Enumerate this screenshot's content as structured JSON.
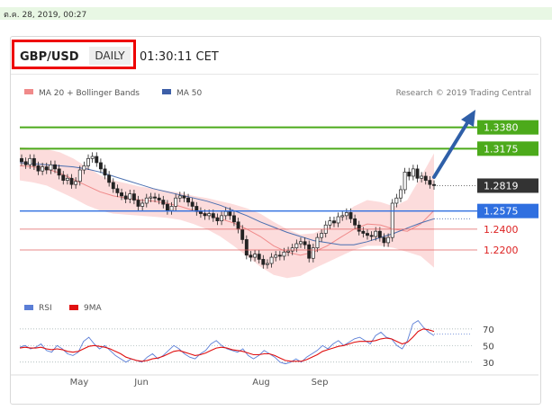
{
  "timestamp": "ต.ค. 28, 2019, 00:27",
  "header": {
    "pair": "GBP/USD",
    "timeframe_button": "DAILY",
    "time": "01:30:11 CET"
  },
  "colors": {
    "up_green": "#4caa1b",
    "support_blue": "#2f6fe0",
    "support_red": "#e06060",
    "ma50": "#4a6fb0",
    "bollinger_fill": "#fbd6d6",
    "arrow": "#2f5fa8",
    "current_price_bg": "#333333"
  },
  "chart_data": [
    {
      "type": "line",
      "legend": [
        {
          "name": "MA 20 + Bollinger Bands",
          "color": "#f08a8a"
        },
        {
          "name": "MA 50",
          "color": "#3d5fa8"
        }
      ],
      "attribution": "Research © 2019 Trading Central",
      "ylim": [
        1.175,
        1.355
      ],
      "x_ticks": [
        "May",
        "Jun",
        "Aug",
        "Sep"
      ],
      "levels": [
        {
          "value": 1.338,
          "label": "1.3380",
          "style": "green"
        },
        {
          "value": 1.3175,
          "label": "1.3175",
          "style": "green"
        },
        {
          "value": 1.2819,
          "label": "1.2819",
          "style": "current"
        },
        {
          "value": 1.2575,
          "label": "1.2575",
          "style": "blue"
        },
        {
          "value": 1.24,
          "label": "1.2400",
          "style": "red"
        },
        {
          "value": 1.22,
          "label": "1.2200",
          "style": "red"
        }
      ],
      "series": [
        {
          "name": "Close",
          "values": [
            1.305,
            1.302,
            1.308,
            1.301,
            1.296,
            1.3,
            1.297,
            1.302,
            1.298,
            1.292,
            1.287,
            1.289,
            1.283,
            1.286,
            1.297,
            1.301,
            1.308,
            1.31,
            1.304,
            1.298,
            1.292,
            1.285,
            1.279,
            1.275,
            1.272,
            1.269,
            1.274,
            1.268,
            1.262,
            1.265,
            1.27,
            1.271,
            1.27,
            1.268,
            1.264,
            1.258,
            1.262,
            1.27,
            1.272,
            1.27,
            1.266,
            1.262,
            1.257,
            1.255,
            1.253,
            1.255,
            1.251,
            1.248,
            1.253,
            1.257,
            1.253,
            1.247,
            1.24,
            1.23,
            1.215,
            1.213,
            1.216,
            1.211,
            1.206,
            1.207,
            1.213,
            1.215,
            1.214,
            1.218,
            1.219,
            1.222,
            1.226,
            1.228,
            1.225,
            1.212,
            1.222,
            1.232,
            1.236,
            1.244,
            1.248,
            1.246,
            1.252,
            1.253,
            1.256,
            1.25,
            1.244,
            1.238,
            1.236,
            1.234,
            1.233,
            1.238,
            1.232,
            1.227,
            1.232,
            1.265,
            1.27,
            1.278,
            1.295,
            1.291,
            1.298,
            1.289,
            1.291,
            1.287,
            1.283,
            1.282
          ]
        },
        {
          "name": "MA 50",
          "values": [
            1.304,
            1.303,
            1.302,
            1.301,
            1.3,
            1.298,
            1.295,
            1.291,
            1.287,
            1.283,
            1.279,
            1.276,
            1.273,
            1.27,
            1.267,
            1.263,
            1.258,
            1.253,
            1.247,
            1.242,
            1.237,
            1.233,
            1.229,
            1.227,
            1.225,
            1.225,
            1.228,
            1.232,
            1.236,
            1.241,
            1.246,
            1.25
          ]
        },
        {
          "name": "MA 20",
          "values": [
            1.301,
            1.3,
            1.298,
            1.294,
            1.288,
            1.282,
            1.276,
            1.272,
            1.27,
            1.268,
            1.267,
            1.265,
            1.262,
            1.258,
            1.254,
            1.25,
            1.246,
            1.24,
            1.233,
            1.224,
            1.218,
            1.215,
            1.218,
            1.224,
            1.232,
            1.24,
            1.245,
            1.244,
            1.24,
            1.238,
            1.245,
            1.258
          ]
        },
        {
          "name": "Bollinger Upper",
          "values": [
            1.319,
            1.318,
            1.317,
            1.314,
            1.308,
            1.3,
            1.292,
            1.287,
            1.284,
            1.281,
            1.279,
            1.277,
            1.275,
            1.272,
            1.27,
            1.267,
            1.264,
            1.26,
            1.255,
            1.247,
            1.24,
            1.235,
            1.236,
            1.242,
            1.252,
            1.262,
            1.268,
            1.266,
            1.262,
            1.268,
            1.29,
            1.313
          ]
        },
        {
          "name": "Bollinger Lower",
          "values": [
            1.287,
            1.285,
            1.282,
            1.276,
            1.27,
            1.263,
            1.258,
            1.255,
            1.254,
            1.253,
            1.252,
            1.251,
            1.249,
            1.245,
            1.24,
            1.233,
            1.224,
            1.214,
            1.204,
            1.196,
            1.193,
            1.195,
            1.202,
            1.208,
            1.214,
            1.22,
            1.224,
            1.224,
            1.222,
            1.218,
            1.214,
            1.203
          ]
        }
      ]
    },
    {
      "type": "line",
      "legend": [
        {
          "name": "RSI",
          "color": "#5b7ed6"
        },
        {
          "name": "9MA",
          "color": "#e01010"
        }
      ],
      "ylim": [
        20,
        85
      ],
      "y_ticks": [
        {
          "value": 70,
          "label": "70"
        },
        {
          "value": 50,
          "label": "50"
        },
        {
          "value": 30,
          "label": "30"
        }
      ],
      "series": [
        {
          "name": "RSI",
          "values": [
            48,
            50,
            46,
            48,
            52,
            44,
            42,
            50,
            46,
            40,
            38,
            42,
            55,
            60,
            52,
            46,
            50,
            44,
            38,
            34,
            30,
            34,
            32,
            30,
            36,
            40,
            34,
            38,
            44,
            50,
            46,
            40,
            36,
            34,
            40,
            44,
            52,
            56,
            50,
            46,
            44,
            42,
            46,
            38,
            34,
            38,
            44,
            40,
            36,
            30,
            28,
            30,
            34,
            30,
            36,
            40,
            44,
            50,
            46,
            52,
            56,
            50,
            54,
            58,
            60,
            56,
            52,
            62,
            66,
            60,
            58,
            50,
            46,
            56,
            76,
            80,
            72,
            66,
            62
          ]
        },
        {
          "name": "9MA",
          "values": [
            47,
            48,
            47,
            47,
            48,
            46,
            45,
            46,
            45,
            43,
            42,
            43,
            46,
            49,
            50,
            49,
            48,
            46,
            43,
            40,
            36,
            34,
            32,
            31,
            32,
            34,
            35,
            37,
            40,
            43,
            44,
            42,
            40,
            38,
            39,
            41,
            44,
            47,
            48,
            47,
            45,
            44,
            43,
            41,
            39,
            39,
            40,
            40,
            38,
            35,
            32,
            31,
            31,
            31,
            33,
            36,
            39,
            43,
            45,
            47,
            49,
            50,
            52,
            54,
            55,
            55,
            55,
            56,
            58,
            59,
            58,
            55,
            52,
            54,
            60,
            67,
            70,
            69,
            67
          ]
        }
      ]
    }
  ]
}
